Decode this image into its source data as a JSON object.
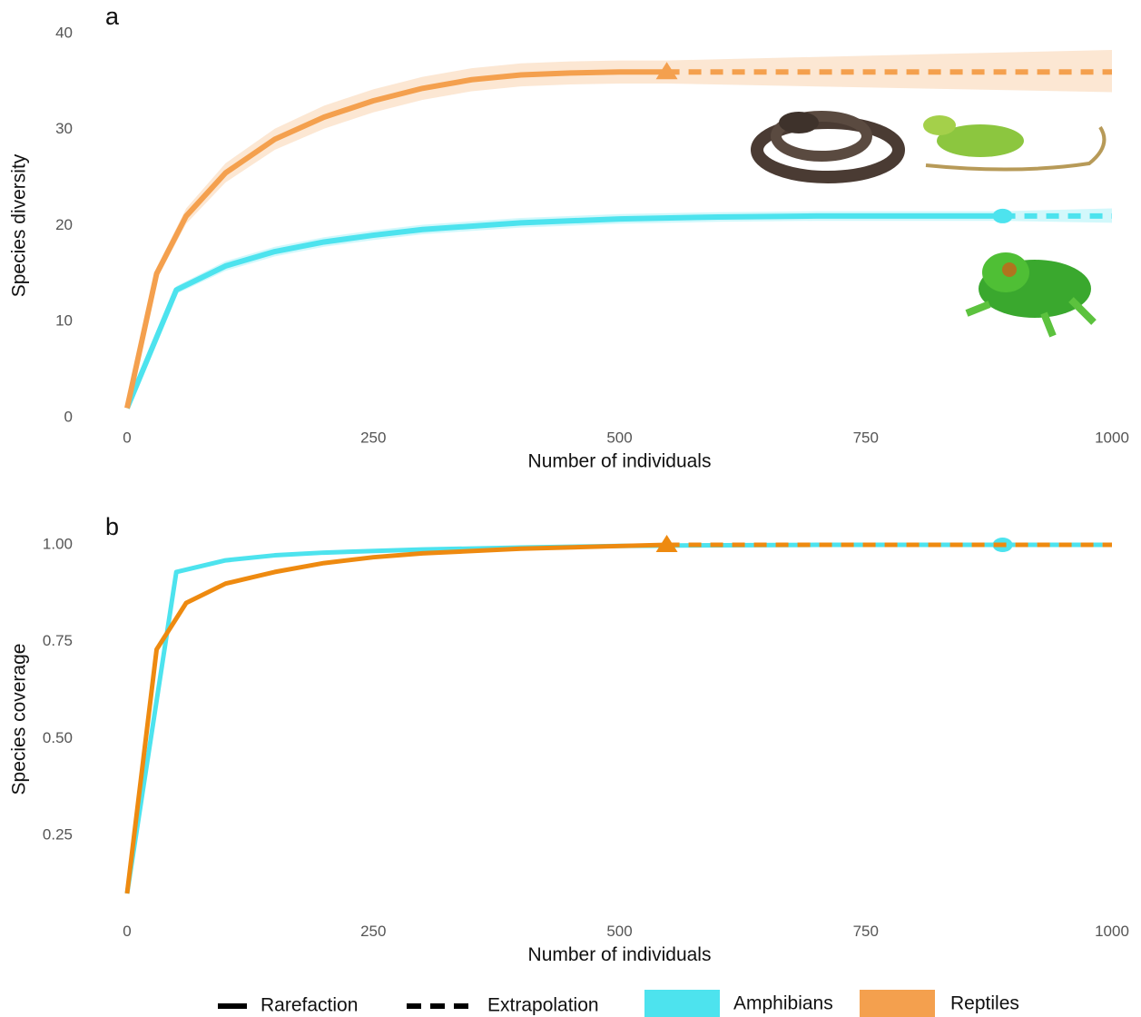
{
  "chart_data": [
    {
      "type": "line",
      "title": "a",
      "x_label": "Number of individuals",
      "y_label": "Species diversity",
      "xlim": [
        0,
        1000
      ],
      "xticks": [
        0,
        250,
        500,
        750,
        1000
      ],
      "ylim": [
        0,
        40
      ],
      "yticks": [
        0,
        10,
        20,
        30,
        40
      ],
      "series": [
        {
          "name": "Amphibians",
          "color": "#4de3ee",
          "linestyle": "solid",
          "x": [
            0,
            50,
            100,
            150,
            200,
            250,
            300,
            400,
            500,
            600,
            700,
            800,
            889
          ],
          "values": [
            1,
            13.3,
            15.8,
            17.3,
            18.3,
            19,
            19.6,
            20.3,
            20.7,
            20.9,
            21,
            21,
            21
          ],
          "ci_lower": [
            1,
            12.9,
            15.3,
            16.8,
            17.8,
            18.5,
            19.1,
            19.8,
            20.2,
            20.4,
            20.5,
            20.5,
            20.5
          ],
          "ci_upper": [
            1,
            13.7,
            16.3,
            17.8,
            18.8,
            19.5,
            20.1,
            20.8,
            21.2,
            21.4,
            21.5,
            21.5,
            21.5
          ]
        },
        {
          "name": "Amphibians",
          "color": "#4de3ee",
          "linestyle": "dashed",
          "marker": "circle",
          "x": [
            889,
            1000
          ],
          "values": [
            21,
            21
          ],
          "ci_lower": [
            20.5,
            20.3
          ],
          "ci_upper": [
            21.5,
            21.8
          ]
        },
        {
          "name": "Reptiles",
          "color": "#f4a04e",
          "linestyle": "solid",
          "x": [
            0,
            30,
            60,
            100,
            150,
            200,
            250,
            300,
            350,
            400,
            450,
            500,
            548
          ],
          "values": [
            1,
            15,
            21,
            25.5,
            29,
            31.3,
            33,
            34.3,
            35.2,
            35.7,
            35.9,
            36,
            36
          ],
          "ci_lower": [
            1,
            14.4,
            20.2,
            24.5,
            27.9,
            30.1,
            31.8,
            33.1,
            34,
            34.5,
            34.7,
            34.8,
            34.8
          ],
          "ci_upper": [
            1,
            15.6,
            21.8,
            26.5,
            30.1,
            32.5,
            34.2,
            35.5,
            36.4,
            36.9,
            37.1,
            37.2,
            37.2
          ]
        },
        {
          "name": "Reptiles",
          "color": "#f4a04e",
          "linestyle": "dashed",
          "marker": "triangle",
          "x": [
            548,
            1000
          ],
          "values": [
            36,
            36
          ],
          "ci_lower": [
            34.8,
            33.9
          ],
          "ci_upper": [
            37.2,
            38.3
          ]
        }
      ]
    },
    {
      "type": "line",
      "title": "b",
      "x_label": "Number of individuals",
      "y_label": "Species coverage",
      "xlim": [
        0,
        1000
      ],
      "xticks": [
        0,
        250,
        500,
        750,
        1000
      ],
      "ylim": [
        0.08,
        1.02
      ],
      "yticks": [
        {
          "value": 0.25,
          "label": "0.25"
        },
        {
          "value": 0.5,
          "label": "0.50"
        },
        {
          "value": 0.75,
          "label": "0.75"
        },
        {
          "value": 1,
          "label": "1.00"
        }
      ],
      "series": [
        {
          "name": "Amphibians",
          "color": "#4de3ee",
          "linestyle": "solid",
          "x": [
            0,
            50,
            100,
            150,
            200,
            300,
            400,
            500,
            600,
            700,
            889
          ],
          "values": [
            0.1,
            0.93,
            0.96,
            0.973,
            0.98,
            0.988,
            0.993,
            0.997,
            0.999,
            1,
            1
          ]
        },
        {
          "name": "Amphibians",
          "color": "#4de3ee",
          "linestyle": "dashed",
          "marker": "circle",
          "x": [
            889,
            1000
          ],
          "values": [
            1,
            1
          ]
        },
        {
          "name": "Reptiles",
          "color": "#ee8a10",
          "linestyle": "solid",
          "x": [
            0,
            30,
            60,
            100,
            150,
            200,
            250,
            300,
            400,
            500,
            548
          ],
          "values": [
            0.1,
            0.73,
            0.85,
            0.9,
            0.93,
            0.953,
            0.968,
            0.978,
            0.99,
            0.997,
            1
          ]
        },
        {
          "name": "Reptiles",
          "color": "#ee8a10",
          "linestyle": "dashed",
          "marker": "triangle",
          "x": [
            548,
            1000
          ],
          "values": [
            1,
            1
          ]
        }
      ]
    }
  ],
  "legend": {
    "line_types": [
      {
        "name": "Rarefaction",
        "linestyle": "solid"
      },
      {
        "name": "Extrapolation",
        "linestyle": "dashed"
      }
    ],
    "groups": [
      {
        "name": "Amphibians",
        "color": "#4de3ee"
      },
      {
        "name": "Reptiles",
        "color": "#f4a04e"
      }
    ]
  }
}
